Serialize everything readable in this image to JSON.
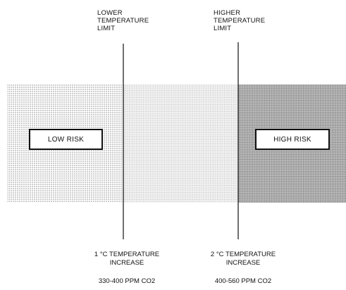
{
  "upper_labels": {
    "lower_limit": "LOWER\nTEMPERATURE\nLIMIT",
    "higher_limit": "HIGHER\nTEMPERATURE\nLIMIT"
  },
  "zones": {
    "low_risk": "LOW RISK",
    "high_risk": "HIGH RISK"
  },
  "bottom_labels": {
    "lower_increase": "1 °C TEMPERATURE\nINCREASE",
    "higher_increase": "2 °C TEMPERATURE\nINCREASE",
    "lower_ppm": "330-400 PPM CO2",
    "higher_ppm": "400-560 PPM CO2"
  },
  "colors": {
    "line": "#111111",
    "low_zone_dot": "#8a8a8a",
    "mid_zone_dot": "#a8a8a8",
    "high_zone_dot": "#5a5a5a"
  }
}
